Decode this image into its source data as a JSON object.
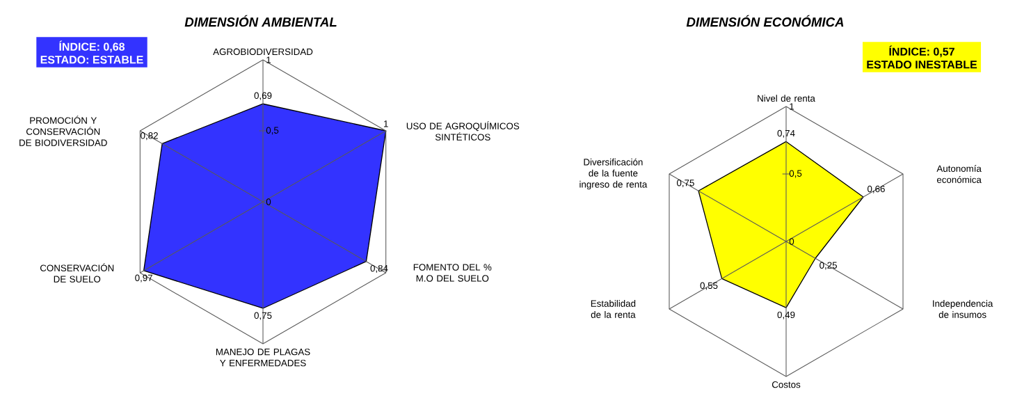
{
  "chart_data": [
    {
      "type": "radar",
      "title": "DIMENSIÓN AMBIENTAL",
      "annotations": [
        "ÍNDICE: 0,68",
        "ESTADO: ESTABLE"
      ],
      "categories": [
        "AGROBIODIVERSIDAD",
        "USO DE AGROQUÍMICOS SINTÉTICOS",
        "FOMENTO DEL % M.O DEL SUELO",
        "MANEJO DE PLAGAS Y ENFERMEDADES",
        "CONSERVACIÓN DE SUELO",
        "PROMOCIÓN Y CONSERVACIÓN DE BIODIVERSIDAD"
      ],
      "ylim": [
        0,
        1
      ],
      "yticks": [
        0,
        {
          "value": 0.5,
          "label": "0,5"
        },
        1
      ],
      "series": [
        {
          "color": "#3333ff",
          "values": [
            0.69,
            1,
            0.84,
            0.75,
            0.97,
            0.82
          ],
          "value_labels": [
            "0,69",
            "1",
            "0,84",
            "0,75",
            "0,97",
            "0,82"
          ]
        }
      ]
    },
    {
      "type": "radar",
      "title": "DIMENSIÓN ECONÓMICA",
      "annotations": [
        "ÍNDICE: 0,57",
        "ESTADO INESTABLE"
      ],
      "categories": [
        "Nivel de renta",
        "Autonomía económica",
        "Independencia de insumos",
        "Costos",
        "Estabilidad de la renta",
        "Diversificación de la fuente ingreso de renta"
      ],
      "ylim": [
        0,
        1
      ],
      "yticks": [
        0,
        {
          "value": 0.5,
          "label": "0,5"
        },
        1
      ],
      "series": [
        {
          "color": "#ffff00",
          "values": [
            0.74,
            0.66,
            0.25,
            0.49,
            0.55,
            0.75
          ],
          "value_labels": [
            "0,74",
            "0,66",
            "0,25",
            "0,49",
            "0,55",
            "0,75"
          ]
        }
      ]
    }
  ]
}
